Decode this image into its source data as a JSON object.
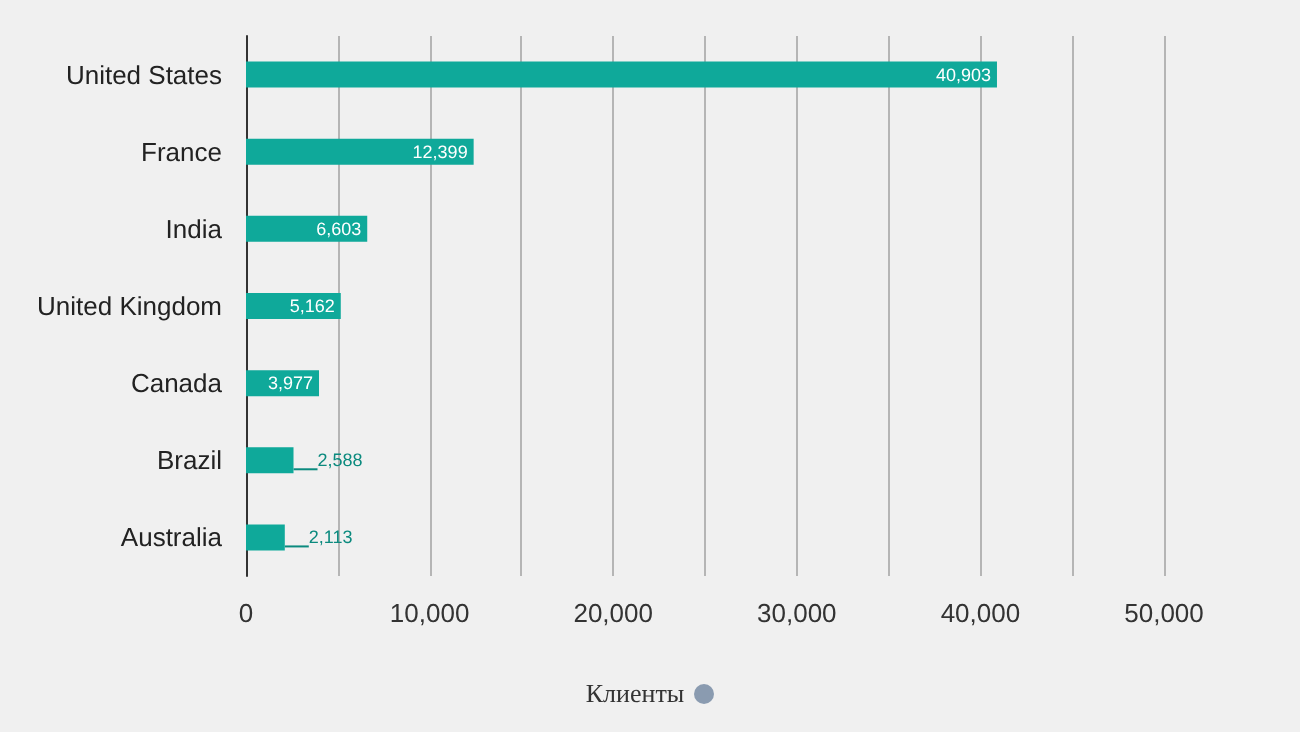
{
  "chart_data": {
    "type": "bar",
    "orientation": "horizontal",
    "xlabel": "Клиенты",
    "categories": [
      "United States",
      "France",
      "India",
      "United Kingdom",
      "Canada",
      "Brazil",
      "Australia"
    ],
    "values": [
      40903,
      12399,
      6603,
      5162,
      3977,
      2588,
      2113
    ],
    "value_labels": [
      "40,903",
      "12,399",
      "6,603",
      "5,162",
      "3,977",
      "2,588",
      "2,113"
    ],
    "color": "#0fa99a",
    "grid": "x",
    "xlim": [
      0,
      50000
    ],
    "xticks": [
      0,
      {
        "value": 5000,
        "label": null
      },
      {
        "value": 10000,
        "label": "10,000"
      },
      {
        "value": 15000,
        "label": null
      },
      {
        "value": 20000,
        "label": "20,000"
      },
      {
        "value": 25000,
        "label": null
      },
      {
        "value": 30000,
        "label": "30,000"
      },
      {
        "value": 35000,
        "label": null
      },
      {
        "value": 40000,
        "label": "40,000"
      },
      {
        "value": 45000,
        "label": null
      },
      {
        "value": 50000,
        "label": "50,000"
      }
    ]
  }
}
